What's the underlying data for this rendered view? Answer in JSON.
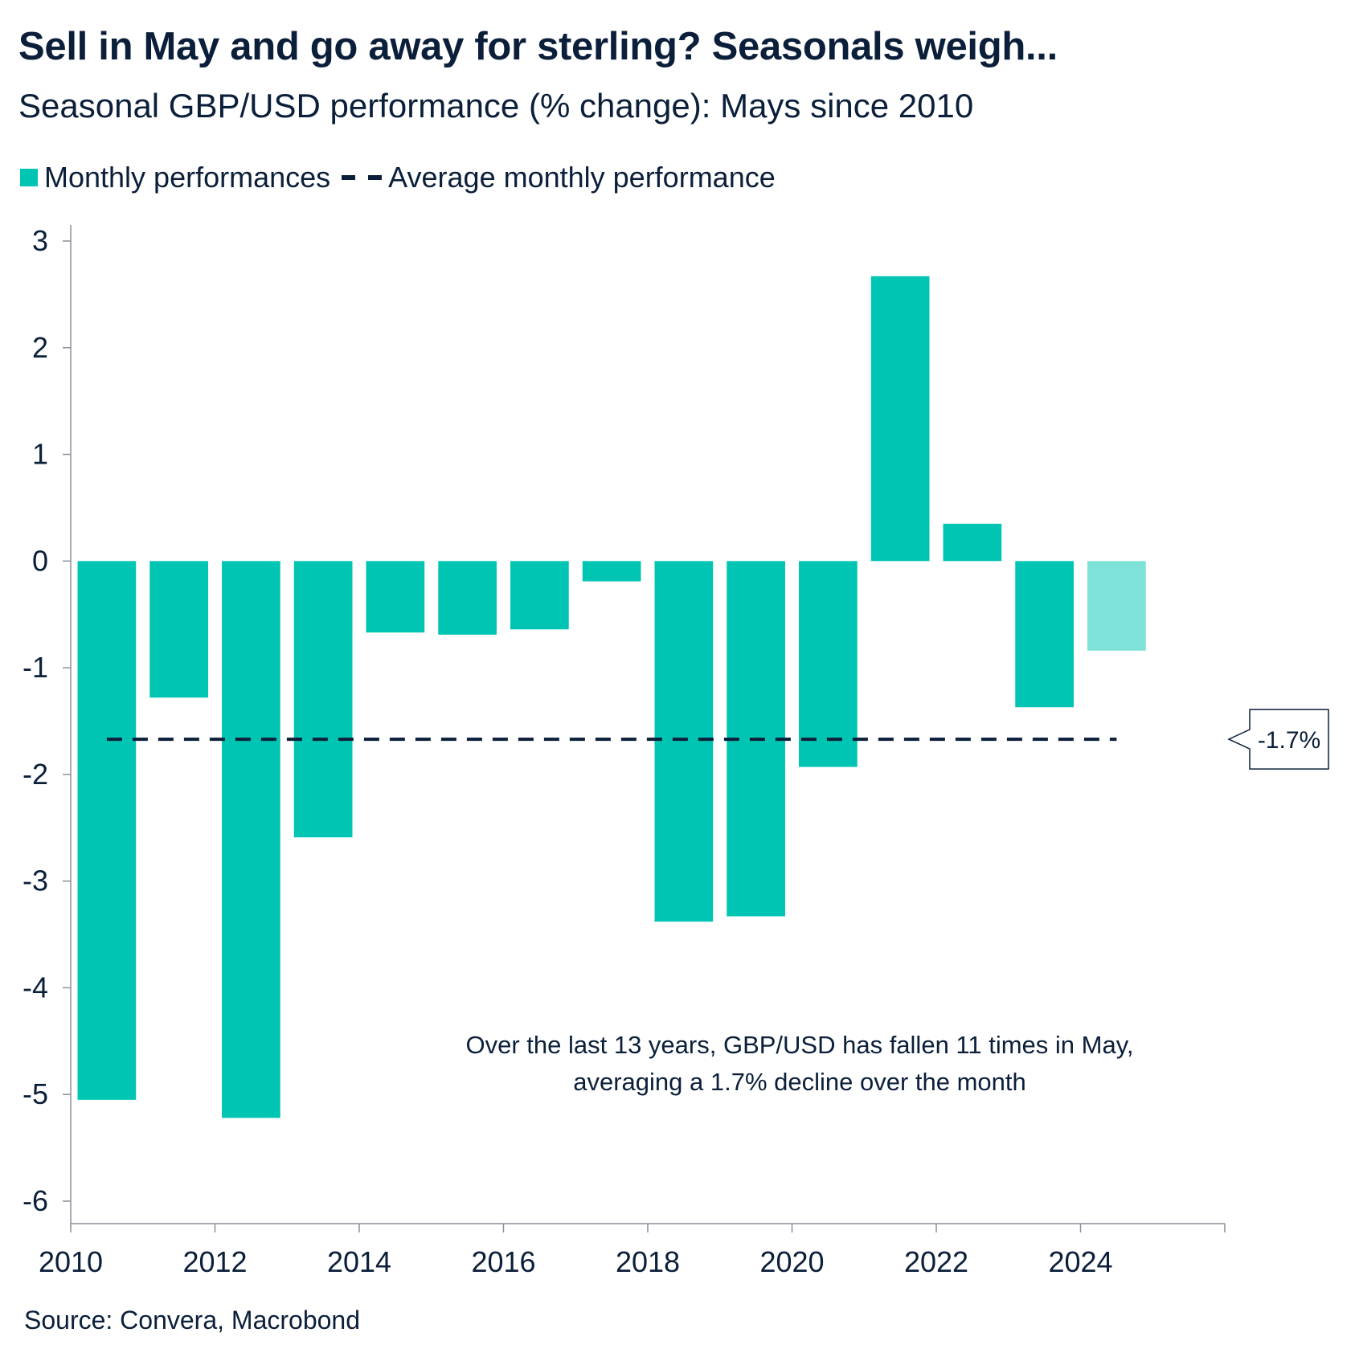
{
  "title": "Sell in May and go away for sterling? Seasonals weigh...",
  "subtitle": "Seasonal GBP/USD performance (% change): Mays since 2010",
  "legend": {
    "bars_label": "Monthly performances",
    "line_label": "Average monthly performance"
  },
  "colors": {
    "bar": "#00c5b2",
    "bar_latest": "#7fe2d8",
    "average_line": "#0b1f3a",
    "axis": "#8a8f99",
    "text": "#0b1f3a"
  },
  "chart_data": {
    "type": "bar",
    "title": "Sell in May and go away for sterling? Seasonals weigh...",
    "subtitle": "Seasonal GBP/USD performance (% change): Mays since 2010",
    "xlabel": "",
    "ylabel": "",
    "categories": [
      "2010",
      "2011",
      "2012",
      "2013",
      "2014",
      "2015",
      "2016",
      "2017",
      "2018",
      "2019",
      "2020",
      "2021",
      "2022",
      "2023",
      "2024"
    ],
    "values": [
      -5.05,
      -1.28,
      -5.22,
      -2.59,
      -0.67,
      -0.69,
      -0.64,
      -0.19,
      -3.38,
      -3.33,
      -1.93,
      2.67,
      0.35,
      -1.37,
      -0.84
    ],
    "highlighted_category": "2024",
    "ylim": [
      -6.2,
      3.2
    ],
    "yticks": [
      "3",
      "2",
      "1",
      "0",
      "-1",
      "-2",
      "-3",
      "-4",
      "-5",
      "-6"
    ],
    "xticks": [
      "2010",
      "2012",
      "2014",
      "2016",
      "2018",
      "2020",
      "2022",
      "2024"
    ],
    "xlim": [
      2010,
      2026
    ],
    "grid": false,
    "legend_position": "top-left",
    "average": {
      "value": -1.67,
      "label": "-1.7%",
      "x_start": 2010.5,
      "x_end": 2024.5
    },
    "annotation": {
      "line1": "Over the last 13 years, GBP/USD has fallen 11 times in May,",
      "line2": "averaging a 1.7% decline over the month"
    }
  },
  "source": "Source: Convera, Macrobond"
}
